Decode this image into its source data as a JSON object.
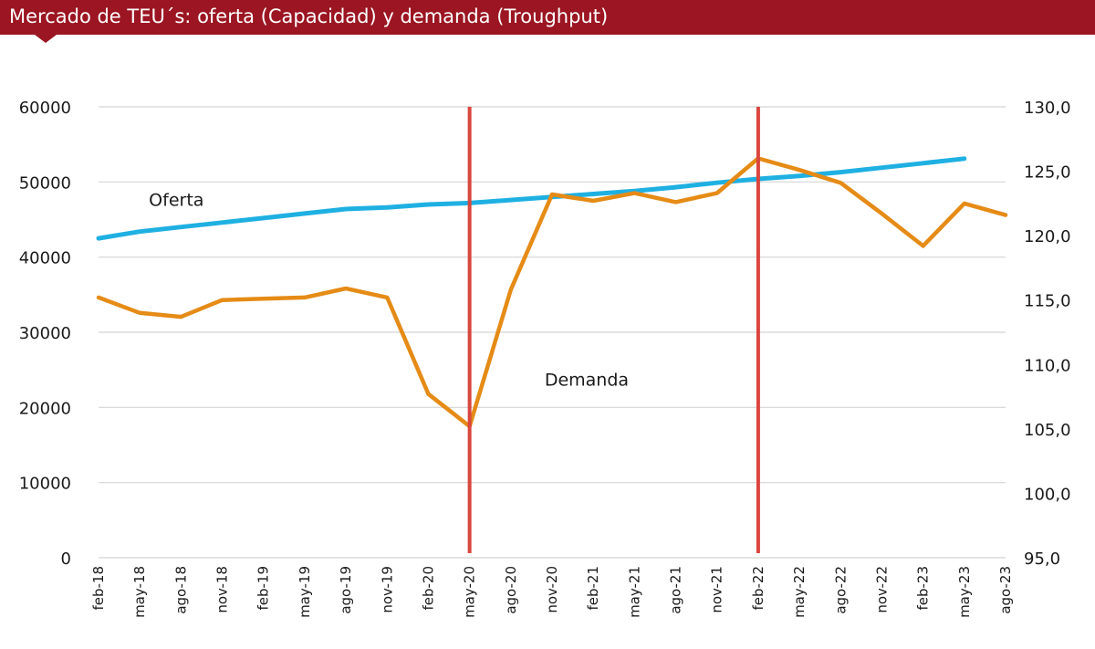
{
  "title": "Mercado de TEU´s: oferta (Capacidad) y demanda (Troughput)",
  "colors": {
    "banner": "#9b1622",
    "oferta": "#1fb0e2",
    "demanda": "#e58b16",
    "marker": "#d9463e",
    "grid": "#d4d4d4"
  },
  "chart_data": {
    "type": "line",
    "title": "Mercado de TEU´s: oferta (Capacidad) y demanda (Troughput)",
    "xlabel": "",
    "ylabel": "",
    "x": [
      "feb-18",
      "may-18",
      "ago-18",
      "nov-18",
      "feb-19",
      "may-19",
      "ago-19",
      "nov-19",
      "feb-20",
      "may-20",
      "ago-20",
      "nov-20",
      "feb-21",
      "may-21",
      "ago-21",
      "nov-21",
      "feb-22",
      "may-22",
      "ago-22",
      "nov-22",
      "feb-23",
      "may-23",
      "ago-23"
    ],
    "y_left": {
      "ylim": [
        0,
        60000
      ],
      "ticks": [
        "0",
        "10000",
        "20000",
        "30000",
        "40000",
        "50000",
        "60000"
      ]
    },
    "y_right": {
      "ylim": [
        95,
        130
      ],
      "ticks": [
        "95,0",
        "100,0",
        "105,0",
        "110,0",
        "115,0",
        "120,0",
        "125,0",
        "130,0"
      ]
    },
    "grid": true,
    "legend": "none",
    "series": [
      {
        "name": "Oferta",
        "axis": "left",
        "color": "#1fb0e2",
        "values": [
          42500,
          43400,
          44000,
          44600,
          45200,
          45800,
          46400,
          46600,
          47000,
          47200,
          47600,
          48000,
          48400,
          48800,
          49300,
          49900,
          50400,
          50800,
          51300,
          51900,
          52500,
          53100,
          null
        ]
      },
      {
        "name": "Demanda",
        "axis": "right",
        "color": "#e58b16",
        "values": [
          115.2,
          114.0,
          113.7,
          115.0,
          115.1,
          115.2,
          115.9,
          115.2,
          107.7,
          105.2,
          115.8,
          123.2,
          122.7,
          123.3,
          122.6,
          123.3,
          126.0,
          125.1,
          124.1,
          121.7,
          119.2,
          122.5,
          121.6
        ]
      }
    ],
    "annotations": [
      {
        "text": "Oferta",
        "series": "Oferta"
      },
      {
        "text": "Demanda",
        "series": "Demanda"
      }
    ],
    "markers": [
      "may-20",
      "feb-22"
    ]
  }
}
